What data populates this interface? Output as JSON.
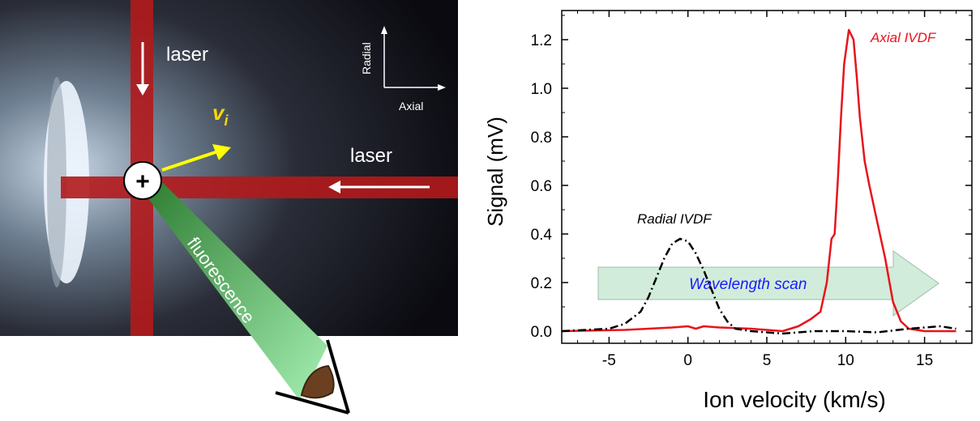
{
  "figure": {
    "left_panel": {
      "laser_top_label": "laser",
      "laser_right_label": "laser",
      "velocity_label": "v",
      "velocity_subscript": "i",
      "plus_symbol": "+",
      "fluorescence_label": "fluorescence",
      "axes_radial": "Radial",
      "axes_axial": "Axial",
      "colors": {
        "laser": "#b3191c",
        "velocity_arrow": "#ffff00",
        "fluorescence": "#4caf50"
      }
    }
  },
  "chart_data": {
    "type": "line",
    "xlabel": "Ion velocity (km/s)",
    "ylabel": "Signal (mV)",
    "xlim": [
      -8,
      18
    ],
    "ylim": [
      -0.05,
      1.32
    ],
    "xticks": [
      -5,
      0,
      5,
      10,
      15
    ],
    "yticks": [
      0.0,
      0.2,
      0.4,
      0.6,
      0.8,
      1.0,
      1.2
    ],
    "ytick_labels": [
      "0.0",
      "0.2",
      "0.4",
      "0.6",
      "0.8",
      "1.0",
      "1.2"
    ],
    "series": [
      {
        "name": "Axial IVDF",
        "color": "#e8131b",
        "style": "solid",
        "x": [
          -8,
          -4,
          -1,
          0,
          0.5,
          1,
          2,
          4,
          6,
          7,
          7.8,
          8.4,
          8.8,
          9.1,
          9.3,
          9.5,
          9.7,
          9.9,
          10.2,
          10.5,
          10.7,
          10.9,
          11.2,
          11.5,
          12,
          12.5,
          13,
          13.5,
          14,
          15,
          16,
          17
        ],
        "y": [
          0.0,
          0.005,
          0.015,
          0.02,
          0.01,
          0.02,
          0.015,
          0.01,
          0.0,
          0.02,
          0.05,
          0.08,
          0.2,
          0.38,
          0.4,
          0.62,
          0.88,
          1.1,
          1.24,
          1.2,
          1.05,
          0.88,
          0.7,
          0.6,
          0.45,
          0.3,
          0.12,
          0.04,
          0.01,
          0.0,
          0.0,
          0.0
        ]
      },
      {
        "name": "Radial IVDF",
        "color": "#000000",
        "style": "dashdot",
        "x": [
          -8,
          -5,
          -4,
          -3,
          -2.5,
          -2,
          -1.5,
          -1,
          -0.5,
          0,
          0.5,
          1,
          1.5,
          2,
          2.5,
          3,
          4,
          5,
          6,
          8,
          10,
          12,
          14,
          16,
          17
        ],
        "y": [
          0.0,
          0.01,
          0.03,
          0.08,
          0.14,
          0.22,
          0.3,
          0.36,
          0.38,
          0.37,
          0.32,
          0.25,
          0.17,
          0.09,
          0.04,
          0.01,
          0.0,
          -0.005,
          -0.01,
          0.0,
          0.0,
          -0.005,
          0.01,
          0.02,
          0.01
        ]
      }
    ],
    "annotations": {
      "axial": "Axial IVDF",
      "radial": "Radial IVDF",
      "scan": "Wavelength scan"
    }
  }
}
